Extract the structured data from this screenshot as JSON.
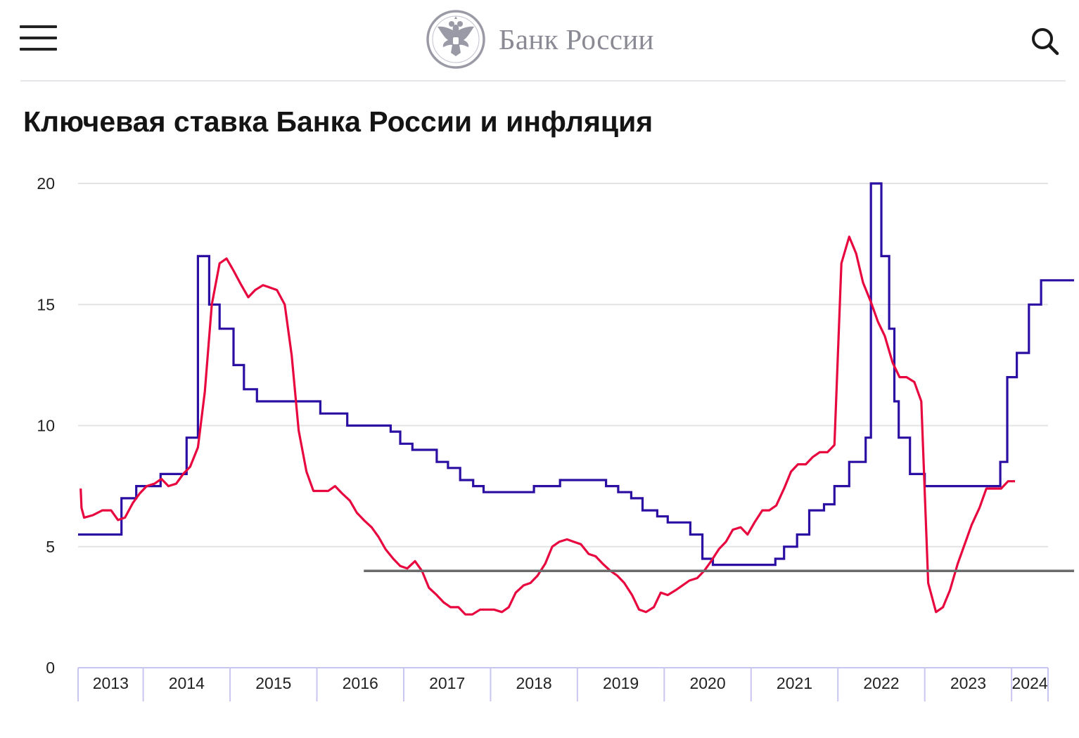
{
  "header": {
    "menu_icon": "hamburger-menu-icon",
    "logo_icon": "double-headed-eagle-emblem",
    "logo_text": "Банк России",
    "search_icon": "search-icon"
  },
  "page": {
    "title": "Ключевая ставка Банка России и инфляция"
  },
  "colors": {
    "key_rate": "#2b0fa3",
    "inflation": "#e8063f",
    "target": "#6b6b6b",
    "grid": "#e3e3e3",
    "axis": "#c9c6f0"
  },
  "chart_data": {
    "type": "line",
    "title": "Ключевая ставка Банка России и инфляция",
    "ylim": [
      0,
      20
    ],
    "yticks": [
      "0",
      "5",
      "10",
      "15",
      "20"
    ],
    "xlim": [
      2013.25,
      2024.42
    ],
    "xtick_labels": [
      "2013",
      "2014",
      "2015",
      "2016",
      "2017",
      "2018",
      "2019",
      "2020",
      "2021",
      "2022",
      "2023",
      "2024"
    ],
    "grid": true,
    "series": [
      {
        "name": "",
        "style": "step",
        "color": "#2b0fa3",
        "points": [
          [
            2013.25,
            5.5
          ],
          [
            2013.75,
            5.5
          ],
          [
            2013.75,
            7.0
          ],
          [
            2013.92,
            7.0
          ],
          [
            2013.92,
            7.5
          ],
          [
            2014.2,
            7.5
          ],
          [
            2014.2,
            8.0
          ],
          [
            2014.5,
            8.0
          ],
          [
            2014.5,
            9.5
          ],
          [
            2014.63,
            9.5
          ],
          [
            2014.63,
            17.0
          ],
          [
            2014.76,
            17.0
          ],
          [
            2014.76,
            15.0
          ],
          [
            2014.88,
            15.0
          ],
          [
            2014.88,
            14.0
          ],
          [
            2015.04,
            14.0
          ],
          [
            2015.04,
            12.5
          ],
          [
            2015.16,
            12.5
          ],
          [
            2015.16,
            11.5
          ],
          [
            2015.31,
            11.5
          ],
          [
            2015.31,
            11.0
          ],
          [
            2016.04,
            11.0
          ],
          [
            2016.04,
            10.5
          ],
          [
            2016.35,
            10.5
          ],
          [
            2016.35,
            10.0
          ],
          [
            2016.85,
            10.0
          ],
          [
            2016.85,
            9.75
          ],
          [
            2016.96,
            9.75
          ],
          [
            2016.96,
            9.25
          ],
          [
            2017.1,
            9.25
          ],
          [
            2017.1,
            9.0
          ],
          [
            2017.38,
            9.0
          ],
          [
            2017.38,
            8.5
          ],
          [
            2017.51,
            8.5
          ],
          [
            2017.51,
            8.25
          ],
          [
            2017.65,
            8.25
          ],
          [
            2017.65,
            7.75
          ],
          [
            2017.8,
            7.75
          ],
          [
            2017.8,
            7.5
          ],
          [
            2017.92,
            7.5
          ],
          [
            2017.92,
            7.25
          ],
          [
            2018.5,
            7.25
          ],
          [
            2018.5,
            7.5
          ],
          [
            2018.8,
            7.5
          ],
          [
            2018.8,
            7.75
          ],
          [
            2019.33,
            7.75
          ],
          [
            2019.33,
            7.5
          ],
          [
            2019.47,
            7.5
          ],
          [
            2019.47,
            7.25
          ],
          [
            2019.62,
            7.25
          ],
          [
            2019.62,
            7.0
          ],
          [
            2019.75,
            7.0
          ],
          [
            2019.75,
            6.5
          ],
          [
            2019.92,
            6.5
          ],
          [
            2019.92,
            6.25
          ],
          [
            2020.04,
            6.25
          ],
          [
            2020.04,
            6.0
          ],
          [
            2020.3,
            6.0
          ],
          [
            2020.3,
            5.5
          ],
          [
            2020.44,
            5.5
          ],
          [
            2020.44,
            4.5
          ],
          [
            2020.56,
            4.5
          ],
          [
            2020.56,
            4.25
          ],
          [
            2021.28,
            4.25
          ],
          [
            2021.28,
            4.5
          ],
          [
            2021.38,
            4.5
          ],
          [
            2021.38,
            5.0
          ],
          [
            2021.53,
            5.0
          ],
          [
            2021.53,
            5.5
          ],
          [
            2021.67,
            5.5
          ],
          [
            2021.67,
            6.5
          ],
          [
            2021.84,
            6.5
          ],
          [
            2021.84,
            6.75
          ],
          [
            2021.96,
            6.75
          ],
          [
            2021.96,
            7.5
          ],
          [
            2022.13,
            7.5
          ],
          [
            2022.13,
            8.5
          ],
          [
            2022.32,
            8.5
          ],
          [
            2022.32,
            9.5
          ],
          [
            2022.38,
            9.5
          ],
          [
            2022.38,
            20.0
          ],
          [
            2022.5,
            20.0
          ],
          [
            2022.5,
            17.0
          ],
          [
            2022.59,
            17.0
          ],
          [
            2022.59,
            14.0
          ],
          [
            2022.65,
            14.0
          ],
          [
            2022.65,
            11.0
          ],
          [
            2022.7,
            11.0
          ],
          [
            2022.7,
            9.5
          ],
          [
            2022.83,
            9.5
          ],
          [
            2022.83,
            8.0
          ],
          [
            2023.0,
            8.0
          ],
          [
            2023.0,
            7.5
          ],
          [
            2023.87,
            7.5
          ],
          [
            2023.87,
            8.5
          ],
          [
            2023.95,
            8.5
          ],
          [
            2023.95,
            12.0
          ],
          [
            2024.06,
            12.0
          ],
          [
            2024.06,
            13.0
          ],
          [
            2024.2,
            13.0
          ],
          [
            2024.2,
            15.0
          ],
          [
            2024.34,
            15.0
          ],
          [
            2024.34,
            16.0
          ],
          [
            2024.72,
            16.0
          ]
        ]
      },
      {
        "name": "",
        "style": "line",
        "color": "#e8063f",
        "points": [
          [
            2013.28,
            7.4
          ],
          [
            2013.29,
            6.6
          ],
          [
            2013.32,
            6.2
          ],
          [
            2013.42,
            6.3
          ],
          [
            2013.53,
            6.5
          ],
          [
            2013.63,
            6.5
          ],
          [
            2013.71,
            6.1
          ],
          [
            2013.79,
            6.2
          ],
          [
            2013.88,
            6.8
          ],
          [
            2013.96,
            7.2
          ],
          [
            2014.04,
            7.5
          ],
          [
            2014.13,
            7.6
          ],
          [
            2014.21,
            7.8
          ],
          [
            2014.29,
            7.5
          ],
          [
            2014.38,
            7.6
          ],
          [
            2014.46,
            8.0
          ],
          [
            2014.54,
            8.3
          ],
          [
            2014.63,
            9.1
          ],
          [
            2014.71,
            11.4
          ],
          [
            2014.79,
            15.0
          ],
          [
            2014.88,
            16.7
          ],
          [
            2014.96,
            16.9
          ],
          [
            2015.04,
            16.4
          ],
          [
            2015.13,
            15.8
          ],
          [
            2015.21,
            15.3
          ],
          [
            2015.29,
            15.6
          ],
          [
            2015.38,
            15.8
          ],
          [
            2015.46,
            15.7
          ],
          [
            2015.54,
            15.6
          ],
          [
            2015.63,
            15.0
          ],
          [
            2015.71,
            12.9
          ],
          [
            2015.79,
            9.8
          ],
          [
            2015.88,
            8.1
          ],
          [
            2015.96,
            7.3
          ],
          [
            2016.04,
            7.3
          ],
          [
            2016.13,
            7.3
          ],
          [
            2016.21,
            7.5
          ],
          [
            2016.29,
            7.2
          ],
          [
            2016.38,
            6.9
          ],
          [
            2016.46,
            6.4
          ],
          [
            2016.54,
            6.1
          ],
          [
            2016.63,
            5.8
          ],
          [
            2016.71,
            5.4
          ],
          [
            2016.79,
            4.9
          ],
          [
            2016.88,
            4.5
          ],
          [
            2016.96,
            4.2
          ],
          [
            2017.04,
            4.1
          ],
          [
            2017.13,
            4.4
          ],
          [
            2017.21,
            4.0
          ],
          [
            2017.29,
            3.3
          ],
          [
            2017.38,
            3.0
          ],
          [
            2017.46,
            2.7
          ],
          [
            2017.54,
            2.5
          ],
          [
            2017.63,
            2.5
          ],
          [
            2017.71,
            2.2
          ],
          [
            2017.79,
            2.2
          ],
          [
            2017.88,
            2.4
          ],
          [
            2017.96,
            2.4
          ],
          [
            2018.04,
            2.4
          ],
          [
            2018.13,
            2.3
          ],
          [
            2018.21,
            2.5
          ],
          [
            2018.29,
            3.1
          ],
          [
            2018.38,
            3.4
          ],
          [
            2018.46,
            3.5
          ],
          [
            2018.54,
            3.8
          ],
          [
            2018.63,
            4.3
          ],
          [
            2018.71,
            5.0
          ],
          [
            2018.79,
            5.2
          ],
          [
            2018.88,
            5.3
          ],
          [
            2018.96,
            5.2
          ],
          [
            2019.04,
            5.1
          ],
          [
            2019.13,
            4.7
          ],
          [
            2019.21,
            4.6
          ],
          [
            2019.29,
            4.3
          ],
          [
            2019.38,
            4.0
          ],
          [
            2019.46,
            3.8
          ],
          [
            2019.54,
            3.5
          ],
          [
            2019.63,
            3.0
          ],
          [
            2019.71,
            2.4
          ],
          [
            2019.79,
            2.3
          ],
          [
            2019.88,
            2.5
          ],
          [
            2019.96,
            3.1
          ],
          [
            2020.04,
            3.0
          ],
          [
            2020.13,
            3.2
          ],
          [
            2020.21,
            3.4
          ],
          [
            2020.29,
            3.6
          ],
          [
            2020.38,
            3.7
          ],
          [
            2020.46,
            4.0
          ],
          [
            2020.54,
            4.4
          ],
          [
            2020.63,
            4.9
          ],
          [
            2020.71,
            5.2
          ],
          [
            2020.79,
            5.7
          ],
          [
            2020.88,
            5.8
          ],
          [
            2020.96,
            5.5
          ],
          [
            2021.04,
            6.0
          ],
          [
            2021.13,
            6.5
          ],
          [
            2021.21,
            6.5
          ],
          [
            2021.29,
            6.7
          ],
          [
            2021.38,
            7.4
          ],
          [
            2021.46,
            8.1
          ],
          [
            2021.54,
            8.4
          ],
          [
            2021.63,
            8.4
          ],
          [
            2021.71,
            8.7
          ],
          [
            2021.79,
            8.9
          ],
          [
            2021.88,
            8.9
          ],
          [
            2021.96,
            9.2
          ],
          [
            2022.04,
            16.7
          ],
          [
            2022.13,
            17.8
          ],
          [
            2022.21,
            17.1
          ],
          [
            2022.29,
            15.9
          ],
          [
            2022.38,
            15.1
          ],
          [
            2022.46,
            14.3
          ],
          [
            2022.54,
            13.7
          ],
          [
            2022.63,
            12.6
          ],
          [
            2022.71,
            12.0
          ],
          [
            2022.79,
            12.0
          ],
          [
            2022.88,
            11.8
          ],
          [
            2022.96,
            11.0
          ],
          [
            2023.04,
            3.5
          ],
          [
            2023.13,
            2.3
          ],
          [
            2023.21,
            2.5
          ],
          [
            2023.29,
            3.2
          ],
          [
            2023.38,
            4.3
          ],
          [
            2023.46,
            5.1
          ],
          [
            2023.54,
            5.9
          ],
          [
            2023.63,
            6.6
          ],
          [
            2023.71,
            7.4
          ],
          [
            2023.79,
            7.4
          ],
          [
            2023.88,
            7.4
          ],
          [
            2023.96,
            7.7
          ],
          [
            2024.04,
            7.7
          ]
        ]
      },
      {
        "name": "",
        "style": "line",
        "color": "#6b6b6b",
        "points": [
          [
            2016.54,
            4.0
          ],
          [
            2024.72,
            4.0
          ]
        ]
      }
    ]
  }
}
